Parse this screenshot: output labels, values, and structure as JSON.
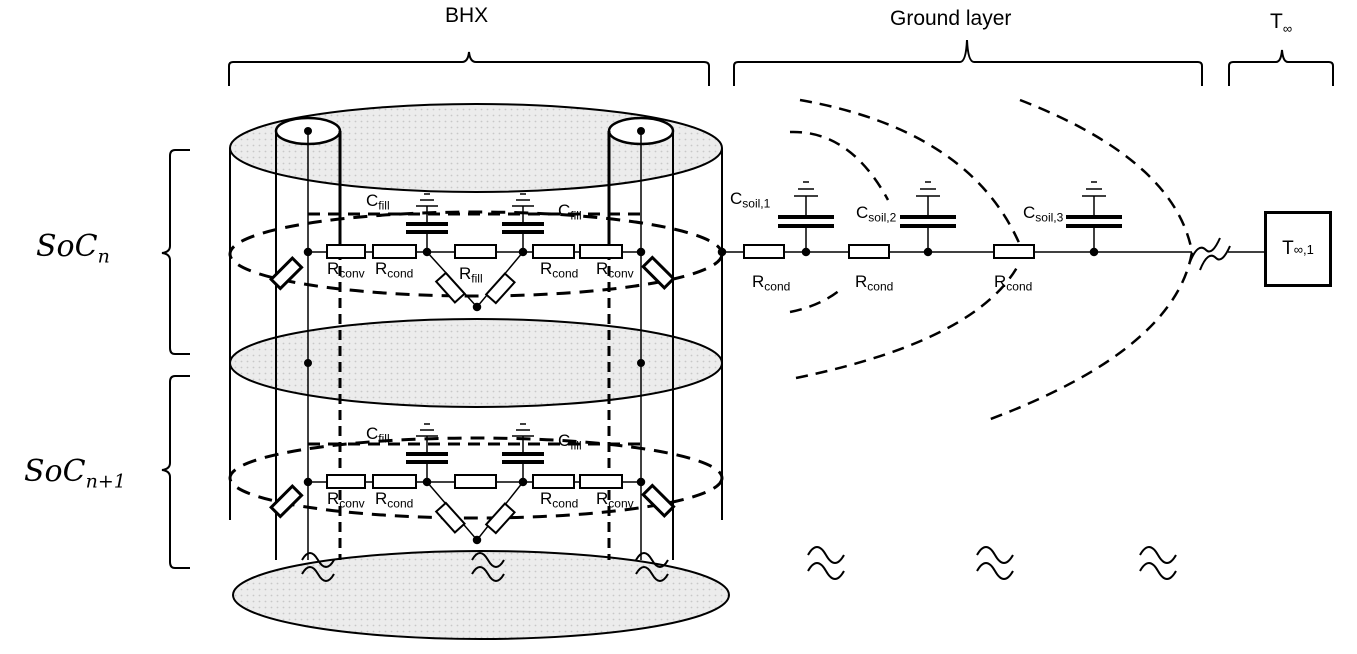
{
  "headers": {
    "bhx": "BHX",
    "ground": "Ground layer",
    "tinf_main": "T",
    "tinf_sub": "∞"
  },
  "sections": {
    "soc_n_base": "SoC",
    "soc_n_sub": "n",
    "soc_n1_base": "SoC",
    "soc_n1_sub": "n+1"
  },
  "components": {
    "c_main": "C",
    "r_main": "R",
    "fill_sub": "fill",
    "conv_sub": "conv",
    "cond_sub": "cond",
    "soil1_sub": "soil,1",
    "soil2_sub": "soil,2",
    "soil3_sub": "soil,3"
  },
  "boundary": {
    "main": "T",
    "sub": "∞,1"
  },
  "colors": {
    "line": "#000000",
    "ellipse_fill": "#e6e6e6"
  }
}
